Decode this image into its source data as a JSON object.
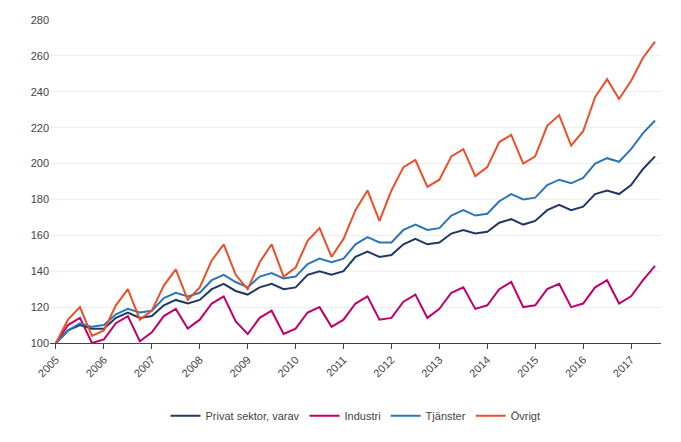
{
  "chart_data": {
    "type": "line",
    "categories": [
      "2005",
      null,
      null,
      null,
      "2006",
      null,
      null,
      null,
      "2007",
      null,
      null,
      null,
      "2008",
      null,
      null,
      null,
      "2009",
      null,
      null,
      null,
      "2010",
      null,
      null,
      null,
      "2011",
      null,
      null,
      null,
      "2012",
      null,
      null,
      null,
      "2013",
      null,
      null,
      null,
      "2014",
      null,
      null,
      null,
      "2015",
      null,
      null,
      null,
      "2016",
      null,
      null,
      null,
      "2017",
      null,
      null
    ],
    "series": [
      {
        "name": "Privat sektor, varav",
        "color": "#1f3864",
        "values": [
          100,
          107,
          110,
          108,
          108,
          114,
          117,
          114,
          115,
          121,
          124,
          122,
          124,
          130,
          133,
          129,
          127,
          131,
          133,
          130,
          131,
          138,
          140,
          138,
          140,
          148,
          151,
          148,
          149,
          155,
          158,
          155,
          156,
          161,
          163,
          161,
          162,
          167,
          169,
          166,
          168,
          174,
          177,
          174,
          176,
          183,
          185,
          183,
          188,
          197,
          204
        ]
      },
      {
        "name": "Industri",
        "color": "#c0006a",
        "values": [
          100,
          110,
          114,
          100,
          102,
          111,
          115,
          101,
          106,
          115,
          119,
          108,
          113,
          122,
          126,
          112,
          105,
          114,
          118,
          105,
          108,
          117,
          120,
          109,
          113,
          122,
          126,
          113,
          114,
          123,
          127,
          114,
          119,
          128,
          131,
          119,
          121,
          130,
          134,
          120,
          121,
          130,
          133,
          120,
          122,
          131,
          135,
          122,
          126,
          135,
          143
        ]
      },
      {
        "name": "Tjänster",
        "color": "#2e75b6",
        "values": [
          100,
          107,
          111,
          109,
          110,
          116,
          119,
          117,
          118,
          125,
          128,
          126,
          128,
          135,
          138,
          134,
          131,
          137,
          139,
          136,
          137,
          144,
          147,
          145,
          147,
          155,
          159,
          156,
          156,
          163,
          166,
          163,
          164,
          171,
          174,
          171,
          172,
          179,
          183,
          180,
          181,
          188,
          191,
          189,
          192,
          200,
          203,
          201,
          208,
          217,
          224
        ]
      },
      {
        "name": "Övrigt",
        "color": "#e8502a",
        "values": [
          100,
          113,
          120,
          104,
          107,
          121,
          130,
          113,
          118,
          132,
          141,
          124,
          131,
          146,
          155,
          138,
          130,
          145,
          155,
          137,
          142,
          157,
          164,
          148,
          158,
          174,
          185,
          168,
          185,
          198,
          202,
          187,
          191,
          204,
          208,
          193,
          198,
          212,
          216,
          200,
          204,
          221,
          227,
          210,
          218,
          237,
          247,
          236,
          246,
          259,
          268
        ]
      }
    ],
    "ylim": [
      100,
      280
    ],
    "yticks": [
      100,
      120,
      140,
      160,
      180,
      200,
      220,
      240,
      260,
      280
    ],
    "grid": true,
    "legend": "bottom"
  }
}
